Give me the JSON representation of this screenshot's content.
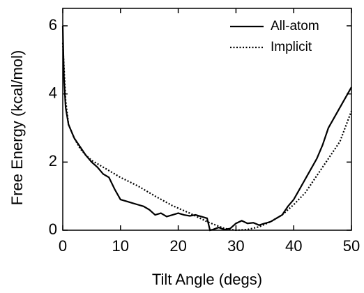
{
  "chart_data": {
    "type": "line",
    "xlabel": "Tilt Angle (degs)",
    "ylabel": "Free Energy (kcal/mol)",
    "xlim": [
      0,
      50
    ],
    "xticks": [
      0,
      10,
      20,
      30,
      40,
      50
    ],
    "ylim": [
      0,
      6
    ],
    "yticks": [
      0,
      2,
      4,
      6
    ],
    "legend": "upper right",
    "series": [
      {
        "name": "All-atom",
        "color": "#000000",
        "style": "solid",
        "x": [
          0,
          0.2,
          0.5,
          1,
          2,
          3,
          4,
          5,
          6,
          7,
          8,
          9,
          10,
          11,
          12,
          13,
          14,
          15,
          16,
          17,
          18,
          19,
          20,
          21,
          22,
          23,
          24,
          25,
          25.5,
          26,
          27,
          28,
          29,
          30,
          31,
          32,
          33,
          34,
          35,
          36,
          37,
          38,
          39,
          40,
          41,
          42,
          43,
          44,
          45,
          46,
          47,
          48,
          49,
          50
        ],
        "values": [
          6.0,
          4.5,
          3.6,
          3.1,
          2.7,
          2.45,
          2.2,
          2.0,
          1.85,
          1.65,
          1.55,
          1.2,
          0.9,
          0.85,
          0.8,
          0.75,
          0.7,
          0.6,
          0.45,
          0.5,
          0.4,
          0.45,
          0.5,
          0.45,
          0.42,
          0.45,
          0.4,
          0.35,
          0.0,
          0.02,
          0.08,
          0.02,
          0.05,
          0.2,
          0.28,
          0.2,
          0.22,
          0.15,
          0.2,
          0.25,
          0.35,
          0.45,
          0.7,
          0.9,
          1.2,
          1.5,
          1.8,
          2.1,
          2.5,
          3.0,
          3.3,
          3.6,
          3.9,
          4.2
        ]
      },
      {
        "name": "Implicit",
        "color": "#000000",
        "style": "dotted",
        "x": [
          0,
          0.5,
          1,
          2,
          3,
          4,
          5,
          7,
          10,
          13,
          16,
          19,
          22,
          25,
          28,
          30,
          32,
          34,
          36,
          38,
          40,
          42,
          44,
          46,
          48,
          50
        ],
        "values": [
          5.5,
          3.8,
          3.1,
          2.7,
          2.4,
          2.2,
          2.05,
          1.85,
          1.55,
          1.3,
          1.0,
          0.72,
          0.5,
          0.25,
          0.05,
          0.0,
          0.02,
          0.1,
          0.25,
          0.45,
          0.75,
          1.1,
          1.6,
          2.1,
          2.6,
          3.5
        ]
      }
    ]
  }
}
